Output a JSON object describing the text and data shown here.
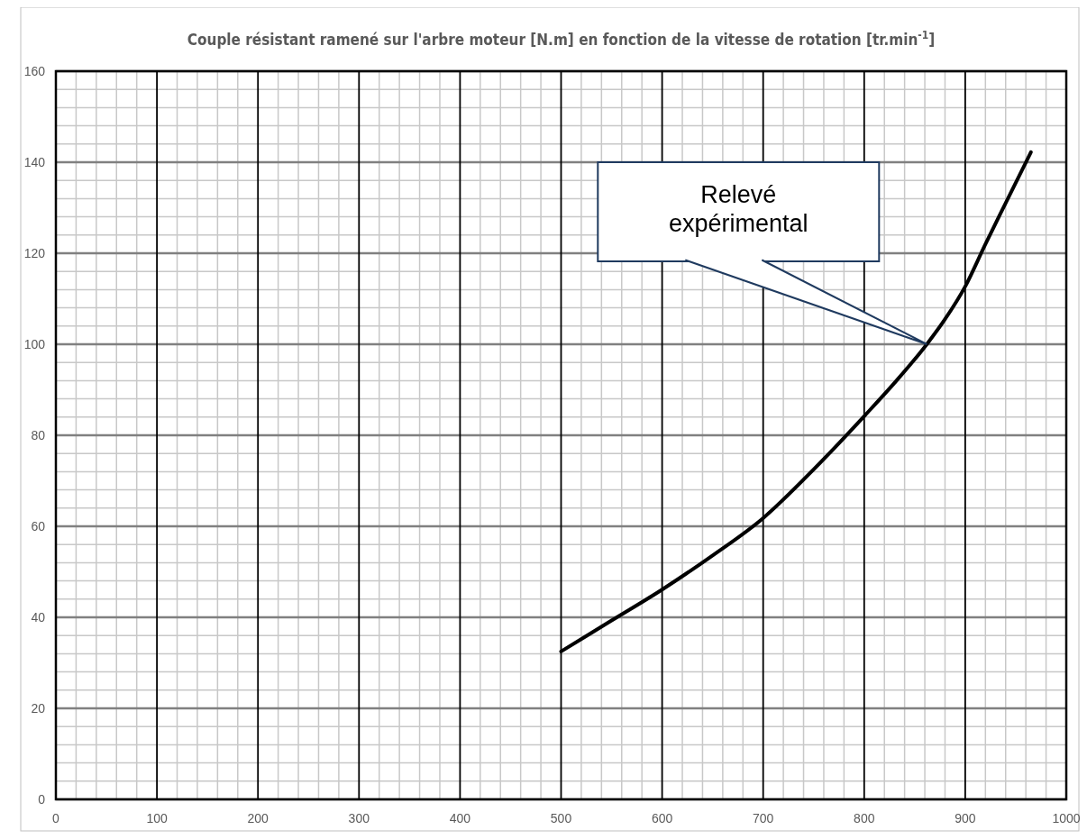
{
  "chart_data": {
    "type": "line",
    "title": "Couple résistant ramené sur l'arbre moteur [N.m] en fonction de la vitesse de rotation [tr.min$^{-1}$]",
    "series": [
      {
        "color": "#000000",
        "x": [
          500,
          550,
          600,
          650,
          700,
          750,
          800,
          830,
          862,
          880,
          900,
          920,
          940,
          965
        ],
        "values": [
          32.5,
          39.3,
          46.1,
          53.6,
          61.8,
          72.5,
          84.2,
          91.5,
          100,
          105.5,
          112.7,
          122,
          131,
          142.2
        ]
      }
    ],
    "xlim": [
      0,
      1000
    ],
    "xticks": [
      0,
      100,
      200,
      300,
      400,
      500,
      600,
      700,
      800,
      900,
      1000
    ],
    "ylim": [
      0,
      160
    ],
    "yticks": [
      0,
      20,
      40,
      60,
      80,
      100,
      120,
      140,
      160
    ],
    "grid": true,
    "marker": "none",
    "line_style": "solid",
    "annotations": [
      {
        "text": "Relevé expérimental",
        "x": 862,
        "y": 100
      }
    ]
  }
}
